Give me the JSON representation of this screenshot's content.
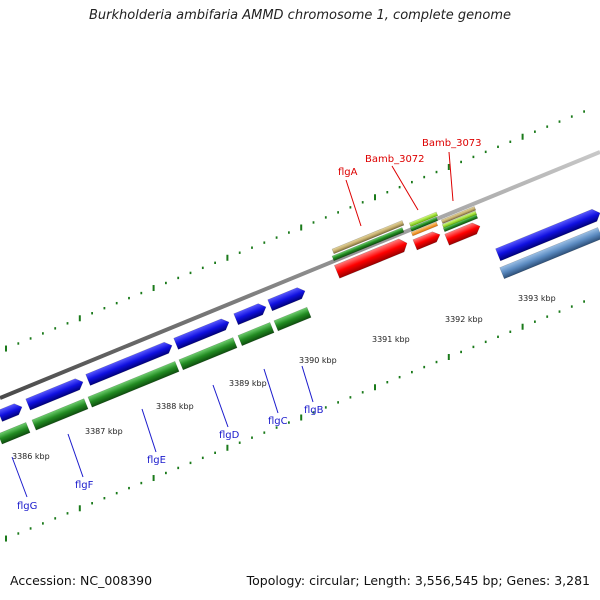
{
  "title": "Burkholderia ambifaria AMMD chromosome 1, complete genome",
  "footer": {
    "accession": "Accession: NC_008390",
    "summary": "Topology: circular; Length: 3,556,545 bp; Genes: 3,281"
  },
  "ticks": [
    "3386 kbp",
    "3387 kbp",
    "3388 kbp",
    "3389 kbp",
    "3390 kbp",
    "3391 kbp",
    "3392 kbp",
    "3393 kbp"
  ],
  "gene_labels_lower": [
    "flgG",
    "flgF",
    "flgE",
    "flgD",
    "flgC",
    "flgB"
  ],
  "gene_labels_upper": [
    "flgA",
    "Bamb_3072",
    "Bamb_3073"
  ],
  "colors": {
    "cds": "#1010e0",
    "gene": "#228b22",
    "rna_red": "#ff0000",
    "tan": "#c8b070",
    "steel": "#5a8ac0",
    "backbone": "#888888",
    "tick": "#1a7a1a",
    "label_blue": "#1a1acc",
    "label_red": "#dd0000"
  }
}
